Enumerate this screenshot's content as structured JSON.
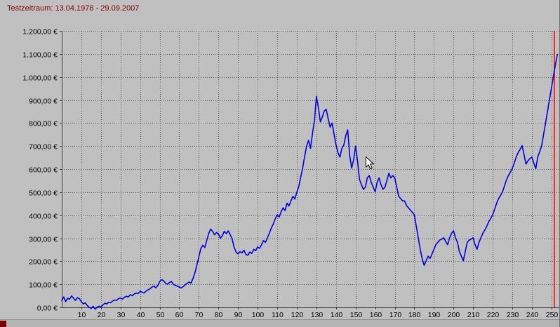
{
  "header": {
    "testzeitraum_label": "Testzeitraum: 13.04.1978 - 29.09.2007",
    "text_color": "#800000"
  },
  "colors": {
    "window_background": "#c0c0c0",
    "axis_text": "#000000"
  },
  "chart_data": {
    "type": "line",
    "title": "",
    "xlabel": "",
    "ylabel": "",
    "grid": "dotted",
    "grid_color": "#5a5a5a",
    "axis_color": "#404040",
    "background_color": "#c0c0c0",
    "x_range": [
      0,
      254
    ],
    "y_range": [
      0,
      1200
    ],
    "x_ticks": [
      10,
      20,
      30,
      40,
      50,
      60,
      70,
      80,
      90,
      100,
      110,
      120,
      130,
      140,
      150,
      160,
      170,
      180,
      190,
      200,
      210,
      220,
      230,
      240,
      250
    ],
    "y_ticks": [
      {
        "value": 0,
        "label": "0,00 €"
      },
      {
        "value": 100,
        "label": "100,00 €"
      },
      {
        "value": 200,
        "label": "200,00 €"
      },
      {
        "value": 300,
        "label": "300,00 €"
      },
      {
        "value": 400,
        "label": "400,00 €"
      },
      {
        "value": 500,
        "label": "500,00 €"
      },
      {
        "value": 600,
        "label": "600,00 €"
      },
      {
        "value": 700,
        "label": "700,00 €"
      },
      {
        "value": 800,
        "label": "800,00 €"
      },
      {
        "value": 900,
        "label": "900,00 €"
      },
      {
        "value": 1000,
        "label": "1.000,00 €"
      },
      {
        "value": 1100,
        "label": "1.100,00 €"
      },
      {
        "value": 1200,
        "label": "1.200,00 €"
      }
    ],
    "marker_line": {
      "x": 251.5,
      "color": "#ff0000"
    },
    "series": [
      {
        "color": "#0000e0",
        "points": [
          [
            0,
            30
          ],
          [
            1,
            45
          ],
          [
            2,
            25
          ],
          [
            3,
            40
          ],
          [
            4,
            35
          ],
          [
            5,
            50
          ],
          [
            6,
            40
          ],
          [
            7,
            30
          ],
          [
            8,
            42
          ],
          [
            9,
            38
          ],
          [
            10,
            25
          ],
          [
            11,
            15
          ],
          [
            12,
            20
          ],
          [
            13,
            8
          ],
          [
            14,
            0
          ],
          [
            15,
            -5
          ],
          [
            16,
            5
          ],
          [
            17,
            -8
          ],
          [
            18,
            0
          ],
          [
            19,
            5
          ],
          [
            20,
            2
          ],
          [
            21,
            10
          ],
          [
            22,
            18
          ],
          [
            23,
            15
          ],
          [
            24,
            22
          ],
          [
            25,
            20
          ],
          [
            26,
            28
          ],
          [
            27,
            32
          ],
          [
            28,
            30
          ],
          [
            29,
            38
          ],
          [
            30,
            40
          ],
          [
            31,
            36
          ],
          [
            32,
            44
          ],
          [
            33,
            48
          ],
          [
            34,
            45
          ],
          [
            35,
            55
          ],
          [
            36,
            50
          ],
          [
            37,
            58
          ],
          [
            38,
            62
          ],
          [
            39,
            60
          ],
          [
            40,
            70
          ],
          [
            41,
            66
          ],
          [
            42,
            62
          ],
          [
            43,
            70
          ],
          [
            44,
            76
          ],
          [
            45,
            80
          ],
          [
            46,
            88
          ],
          [
            47,
            92
          ],
          [
            48,
            85
          ],
          [
            49,
            95
          ],
          [
            50,
            112
          ],
          [
            51,
            120
          ],
          [
            52,
            115
          ],
          [
            53,
            105
          ],
          [
            54,
            100
          ],
          [
            55,
            108
          ],
          [
            56,
            112
          ],
          [
            57,
            100
          ],
          [
            58,
            95
          ],
          [
            59,
            92
          ],
          [
            60,
            88
          ],
          [
            61,
            84
          ],
          [
            62,
            90
          ],
          [
            63,
            98
          ],
          [
            64,
            104
          ],
          [
            65,
            110
          ],
          [
            66,
            105
          ],
          [
            67,
            125
          ],
          [
            68,
            150
          ],
          [
            69,
            185
          ],
          [
            70,
            220
          ],
          [
            71,
            255
          ],
          [
            72,
            270
          ],
          [
            73,
            260
          ],
          [
            74,
            290
          ],
          [
            75,
            320
          ],
          [
            76,
            340
          ],
          [
            77,
            330
          ],
          [
            78,
            315
          ],
          [
            79,
            325
          ],
          [
            80,
            318
          ],
          [
            81,
            300
          ],
          [
            82,
            312
          ],
          [
            83,
            330
          ],
          [
            84,
            320
          ],
          [
            85,
            332
          ],
          [
            86,
            315
          ],
          [
            87,
            298
          ],
          [
            88,
            260
          ],
          [
            89,
            240
          ],
          [
            90,
            232
          ],
          [
            91,
            242
          ],
          [
            92,
            236
          ],
          [
            93,
            248
          ],
          [
            94,
            230
          ],
          [
            95,
            226
          ],
          [
            96,
            240
          ],
          [
            97,
            234
          ],
          [
            98,
            252
          ],
          [
            99,
            246
          ],
          [
            100,
            262
          ],
          [
            101,
            256
          ],
          [
            102,
            272
          ],
          [
            103,
            290
          ],
          [
            104,
            282
          ],
          [
            105,
            302
          ],
          [
            106,
            322
          ],
          [
            107,
            345
          ],
          [
            108,
            362
          ],
          [
            109,
            385
          ],
          [
            110,
            402
          ],
          [
            111,
            392
          ],
          [
            112,
            415
          ],
          [
            113,
            432
          ],
          [
            114,
            420
          ],
          [
            115,
            452
          ],
          [
            116,
            440
          ],
          [
            117,
            462
          ],
          [
            118,
            482
          ],
          [
            119,
            470
          ],
          [
            120,
            500
          ],
          [
            121,
            525
          ],
          [
            122,
            565
          ],
          [
            123,
            605
          ],
          [
            124,
            655
          ],
          [
            125,
            700
          ],
          [
            126,
            725
          ],
          [
            127,
            690
          ],
          [
            128,
            755
          ],
          [
            129,
            810
          ],
          [
            130,
            915
          ],
          [
            131,
            868
          ],
          [
            132,
            805
          ],
          [
            133,
            825
          ],
          [
            134,
            852
          ],
          [
            135,
            860
          ],
          [
            136,
            820
          ],
          [
            137,
            782
          ],
          [
            138,
            800
          ],
          [
            139,
            752
          ],
          [
            140,
            705
          ],
          [
            141,
            672
          ],
          [
            142,
            652
          ],
          [
            143,
            690
          ],
          [
            144,
            705
          ],
          [
            145,
            745
          ],
          [
            146,
            770
          ],
          [
            147,
            660
          ],
          [
            148,
            605
          ],
          [
            149,
            640
          ],
          [
            150,
            700
          ],
          [
            151,
            635
          ],
          [
            152,
            555
          ],
          [
            153,
            532
          ],
          [
            154,
            512
          ],
          [
            155,
            522
          ],
          [
            156,
            562
          ],
          [
            157,
            572
          ],
          [
            158,
            542
          ],
          [
            159,
            522
          ],
          [
            160,
            502
          ],
          [
            161,
            542
          ],
          [
            162,
            562
          ],
          [
            163,
            532
          ],
          [
            164,
            512
          ],
          [
            165,
            522
          ],
          [
            166,
            552
          ],
          [
            167,
            582
          ],
          [
            168,
            562
          ],
          [
            169,
            572
          ],
          [
            170,
            562
          ],
          [
            171,
            522
          ],
          [
            172,
            482
          ],
          [
            173,
            472
          ],
          [
            174,
            462
          ],
          [
            175,
            462
          ],
          [
            176,
            442
          ],
          [
            177,
            432
          ],
          [
            178,
            422
          ],
          [
            179,
            412
          ],
          [
            180,
            402
          ],
          [
            181,
            352
          ],
          [
            182,
            302
          ],
          [
            183,
            252
          ],
          [
            184,
            212
          ],
          [
            185,
            182
          ],
          [
            186,
            202
          ],
          [
            187,
            222
          ],
          [
            188,
            212
          ],
          [
            189,
            232
          ],
          [
            190,
            252
          ],
          [
            191,
            272
          ],
          [
            192,
            282
          ],
          [
            193,
            292
          ],
          [
            194,
            296
          ],
          [
            195,
            302
          ],
          [
            196,
            286
          ],
          [
            197,
            272
          ],
          [
            198,
            302
          ],
          [
            199,
            322
          ],
          [
            200,
            332
          ],
          [
            201,
            302
          ],
          [
            202,
            282
          ],
          [
            203,
            242
          ],
          [
            204,
            222
          ],
          [
            205,
            202
          ],
          [
            206,
            242
          ],
          [
            207,
            282
          ],
          [
            208,
            292
          ],
          [
            209,
            296
          ],
          [
            210,
            302
          ],
          [
            211,
            272
          ],
          [
            212,
            252
          ],
          [
            213,
            282
          ],
          [
            214,
            302
          ],
          [
            215,
            322
          ],
          [
            216,
            336
          ],
          [
            217,
            352
          ],
          [
            218,
            372
          ],
          [
            219,
            386
          ],
          [
            220,
            402
          ],
          [
            221,
            426
          ],
          [
            222,
            452
          ],
          [
            223,
            472
          ],
          [
            224,
            486
          ],
          [
            225,
            502
          ],
          [
            226,
            526
          ],
          [
            227,
            552
          ],
          [
            228,
            572
          ],
          [
            229,
            586
          ],
          [
            230,
            602
          ],
          [
            231,
            626
          ],
          [
            232,
            652
          ],
          [
            233,
            672
          ],
          [
            234,
            686
          ],
          [
            235,
            702
          ],
          [
            236,
            662
          ],
          [
            237,
            622
          ],
          [
            238,
            636
          ],
          [
            239,
            646
          ],
          [
            240,
            652
          ],
          [
            241,
            626
          ],
          [
            242,
            602
          ],
          [
            243,
            652
          ],
          [
            244,
            676
          ],
          [
            245,
            702
          ],
          [
            246,
            752
          ],
          [
            247,
            802
          ],
          [
            248,
            852
          ],
          [
            249,
            902
          ],
          [
            250,
            952
          ],
          [
            251,
            1002
          ],
          [
            252,
            1052
          ],
          [
            253,
            1098
          ]
        ]
      }
    ]
  }
}
